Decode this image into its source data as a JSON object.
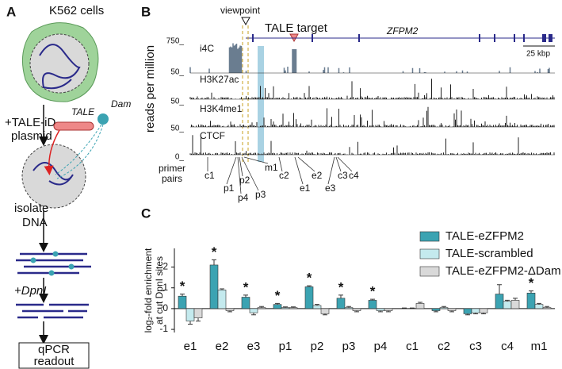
{
  "panel_a": {
    "letter": "A",
    "cells": "K562 cells",
    "step1": [
      "+TALE-iD",
      "plasmid"
    ],
    "tale": "TALE",
    "dam": "Dam",
    "step2": [
      "isolate",
      "DNA"
    ],
    "step3": "+DpnI",
    "readout": [
      "qPCR",
      "readout"
    ]
  },
  "panel_b": {
    "letter": "B",
    "viewpoint": "viewpoint",
    "target": "TALE target",
    "gene": "ZFPM2",
    "scale": "25 kbp",
    "ylabel": "reads per million",
    "tracks": [
      {
        "max": "750_",
        "name": "i4C"
      },
      {
        "max": "50_",
        "name": "H3K27ac"
      },
      {
        "max": "50_",
        "name": "H3K4me1"
      },
      {
        "max": "50_",
        "name": "CTCF"
      }
    ],
    "track_min": "0_",
    "primer_label": [
      "primer",
      "pairs"
    ],
    "primers": [
      "c1",
      "p1",
      "p2",
      "p4",
      "p3",
      "m1",
      "c2",
      "e1",
      "e2",
      "e3",
      "c3",
      "c4"
    ]
  },
  "chart_data": {
    "type": "bar",
    "letter": "C",
    "ylabel": [
      "log₂-fold enrichment",
      "at cut DpnI sites"
    ],
    "categories": [
      "e1",
      "e2",
      "e3",
      "p1",
      "p2",
      "p3",
      "p4",
      "c1",
      "c2",
      "c3",
      "c4",
      "m1"
    ],
    "series": [
      {
        "name": "TALE-eZFPM2",
        "color": "#3ba3b2",
        "values": [
          0.6,
          2.1,
          0.55,
          0.2,
          1.05,
          0.5,
          0.4,
          0.0,
          -0.1,
          -0.25,
          0.7,
          0.75
        ],
        "errors": [
          0.1,
          0.25,
          0.1,
          0.05,
          0.05,
          0.15,
          0.05,
          0.03,
          0.05,
          0.05,
          0.45,
          0.1
        ]
      },
      {
        "name": "TALE-scrambled",
        "color": "#c4eaee",
        "values": [
          -0.6,
          0.9,
          -0.2,
          0.05,
          0.15,
          0.05,
          -0.1,
          0.0,
          0.05,
          -0.2,
          0.35,
          0.2
        ],
        "errors": [
          0.15,
          0.05,
          0.1,
          0.03,
          0.05,
          0.05,
          0.05,
          0.03,
          0.05,
          0.05,
          0.05,
          0.05
        ]
      },
      {
        "name": "TALE-eZFPM2-ΔDam",
        "color": "#d9d9d9",
        "values": [
          -0.45,
          -0.1,
          0.05,
          0.05,
          -0.25,
          -0.1,
          -0.1,
          0.25,
          -0.1,
          -0.2,
          0.4,
          0.05
        ],
        "errors": [
          0.15,
          0.05,
          0.05,
          0.03,
          0.05,
          0.05,
          0.05,
          0.05,
          0.05,
          0.05,
          0.1,
          0.05
        ]
      }
    ],
    "significance": [
      "*",
      "*",
      "*",
      "*",
      "*",
      "*",
      "*",
      null,
      null,
      null,
      null,
      "*"
    ],
    "ylim": [
      -1.15,
      2.9
    ],
    "yticks": [
      -1,
      0,
      1,
      2
    ],
    "legend": "upper right"
  }
}
